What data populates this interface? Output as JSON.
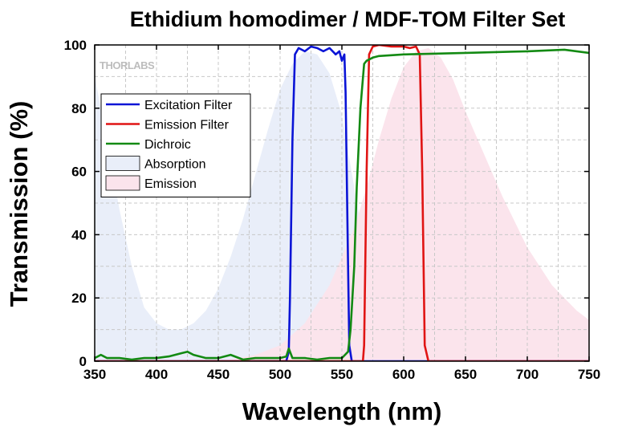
{
  "chart_data": {
    "type": "line",
    "title": "Ethidium homodimer / MDF-TOM Filter Set",
    "xlabel": "Wavelength (nm)",
    "ylabel": "Transmission (%)",
    "xlim": [
      350,
      750
    ],
    "ylim": [
      0,
      100
    ],
    "x_ticks": [
      350,
      400,
      450,
      500,
      550,
      600,
      650,
      700,
      750
    ],
    "y_ticks": [
      0,
      20,
      40,
      60,
      80,
      100
    ],
    "grid": true,
    "legend_position": "upper-left",
    "logo": "THORLABS",
    "series": [
      {
        "name": "Excitation Filter",
        "kind": "line",
        "color": "#0a14d6",
        "x": [
          350,
          505,
          507,
          508,
          510,
          512,
          515,
          520,
          525,
          530,
          535,
          540,
          545,
          548,
          550,
          552,
          553,
          555,
          556,
          558,
          560,
          750
        ],
        "y": [
          0,
          0,
          3,
          20,
          70,
          97,
          99,
          98,
          99.5,
          99,
          98,
          99,
          97,
          98,
          95,
          97,
          85,
          30,
          5,
          0,
          0,
          0
        ]
      },
      {
        "name": "Emission Filter",
        "kind": "line",
        "color": "#e01414",
        "x": [
          350,
          567,
          568,
          570,
          572,
          575,
          580,
          590,
          600,
          605,
          610,
          613,
          615,
          617,
          620,
          750
        ],
        "y": [
          0,
          0,
          5,
          60,
          97,
          99.5,
          100,
          99.5,
          99.5,
          99,
          99.5,
          97,
          60,
          5,
          0,
          0
        ]
      },
      {
        "name": "Dichroic",
        "kind": "line",
        "color": "#138a13",
        "x": [
          350,
          355,
          360,
          370,
          380,
          390,
          400,
          410,
          415,
          420,
          425,
          430,
          440,
          450,
          460,
          470,
          480,
          490,
          500,
          505,
          507,
          510,
          520,
          530,
          540,
          550,
          555,
          557,
          560,
          562,
          565,
          568,
          570,
          575,
          580,
          600,
          650,
          700,
          730,
          750
        ],
        "y": [
          1,
          2,
          1,
          1,
          0.5,
          1,
          1,
          1.5,
          2,
          2.5,
          3,
          2,
          1,
          1,
          2,
          0.5,
          1,
          1,
          1,
          1.5,
          4,
          1,
          1,
          0.5,
          1,
          1,
          3,
          10,
          30,
          55,
          80,
          94,
          95,
          96,
          96.5,
          97,
          97.5,
          98,
          98.5,
          97.5
        ]
      },
      {
        "name": "Absorption",
        "kind": "area",
        "color": "#e9eef9",
        "x": [
          350,
          360,
          370,
          380,
          390,
          400,
          410,
          420,
          430,
          440,
          450,
          460,
          470,
          480,
          490,
          500,
          510,
          520,
          530,
          540,
          550,
          560,
          570,
          580,
          590,
          600,
          610,
          620,
          630
        ],
        "y": [
          90,
          70,
          48,
          30,
          17,
          12,
          10,
          10,
          12,
          16,
          23,
          33,
          45,
          59,
          73,
          86,
          94,
          98,
          97,
          91,
          78,
          55,
          33,
          17,
          8,
          3,
          1,
          0.5,
          0
        ]
      },
      {
        "name": "Emission",
        "kind": "area",
        "color": "#fbe4ec",
        "x": [
          440,
          460,
          480,
          500,
          520,
          540,
          560,
          570,
          580,
          590,
          600,
          610,
          620,
          630,
          640,
          650,
          660,
          670,
          680,
          690,
          700,
          710,
          720,
          730,
          740,
          750
        ],
        "y": [
          0,
          0.5,
          2,
          5,
          12,
          24,
          42,
          55,
          70,
          83,
          93,
          98,
          99,
          96,
          89,
          79,
          70,
          61,
          52,
          44,
          36,
          30,
          24,
          20,
          16,
          13
        ]
      }
    ]
  }
}
